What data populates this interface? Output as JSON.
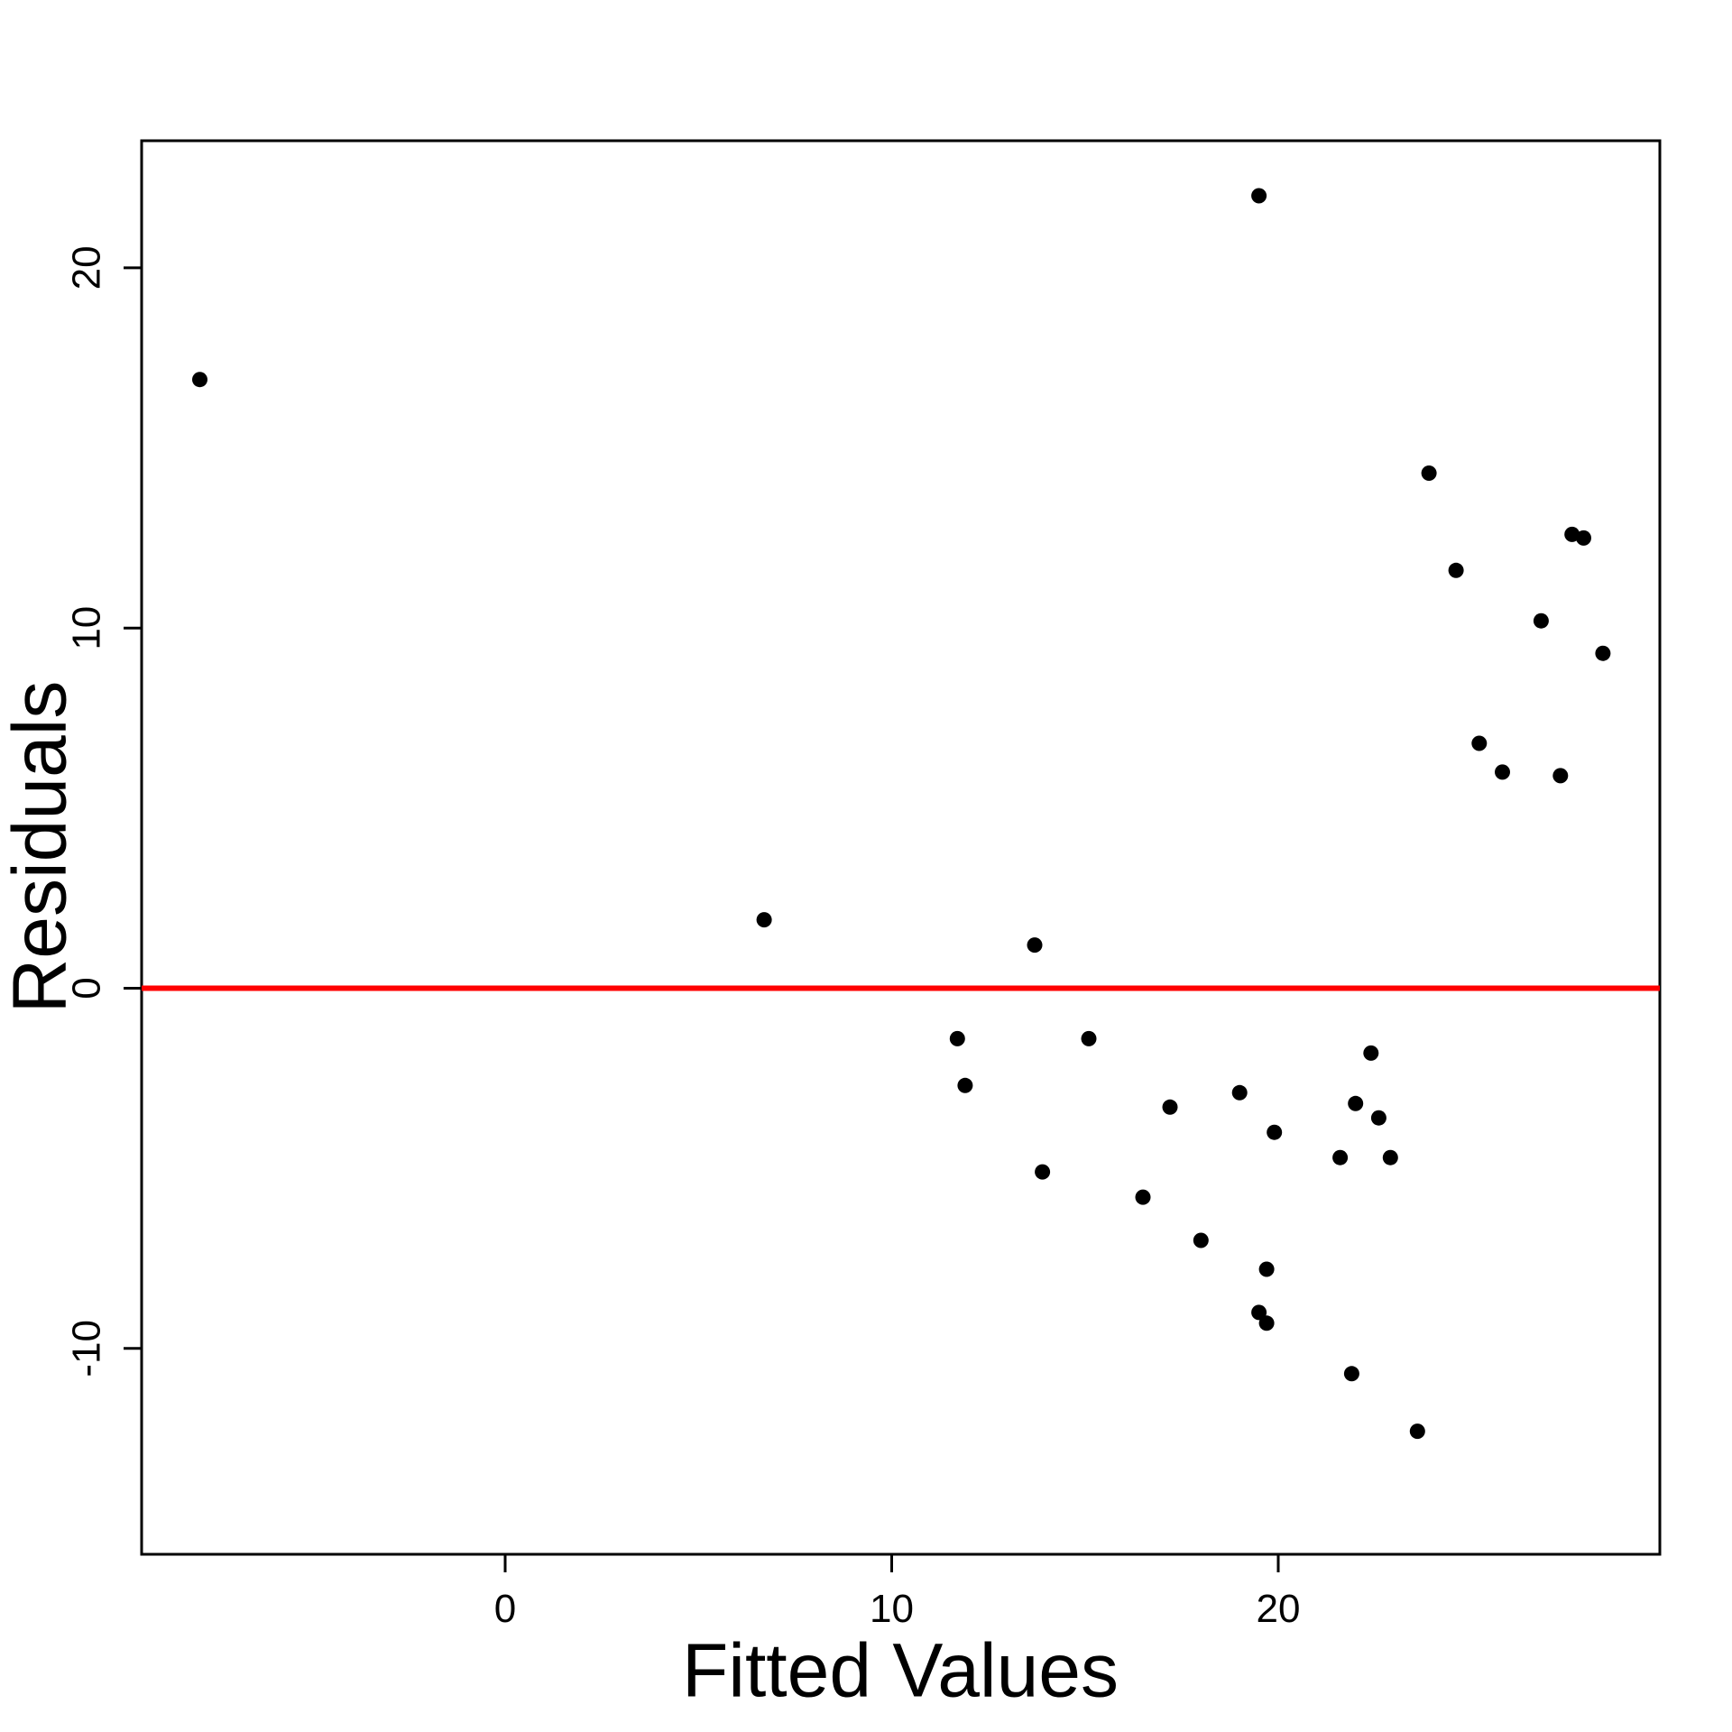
{
  "chart_data": {
    "type": "scatter",
    "title": "",
    "xlabel": "Fitted Values",
    "ylabel": "Residuals",
    "x_ticks": [
      0,
      10,
      20
    ],
    "y_ticks": [
      -10,
      0,
      10,
      20
    ],
    "xlim": [
      -9.4,
      29.9
    ],
    "ylim": [
      -15.7,
      23.5
    ],
    "grid": false,
    "legend": "none",
    "zero_line_y": 0,
    "colors": {
      "points": "#000000",
      "zero_line": "#FF0000",
      "axis": "#000000",
      "background": "#FFFFFF"
    },
    "points": [
      [
        -7.9,
        16.9
      ],
      [
        19.5,
        22.0
      ],
      [
        6.7,
        1.9
      ],
      [
        13.7,
        1.2
      ],
      [
        23.9,
        14.3
      ],
      [
        27.6,
        12.6
      ],
      [
        27.9,
        12.5
      ],
      [
        24.6,
        11.6
      ],
      [
        26.8,
        10.2
      ],
      [
        28.4,
        9.3
      ],
      [
        25.2,
        6.8
      ],
      [
        25.8,
        6.0
      ],
      [
        27.3,
        5.9
      ],
      [
        11.7,
        -1.4
      ],
      [
        15.1,
        -1.4
      ],
      [
        22.4,
        -1.8
      ],
      [
        11.9,
        -2.7
      ],
      [
        19.0,
        -2.9
      ],
      [
        17.2,
        -3.3
      ],
      [
        22.0,
        -3.2
      ],
      [
        22.6,
        -3.6
      ],
      [
        19.9,
        -4.0
      ],
      [
        21.6,
        -4.7
      ],
      [
        22.9,
        -4.7
      ],
      [
        13.9,
        -5.1
      ],
      [
        16.5,
        -5.8
      ],
      [
        18.0,
        -7.0
      ],
      [
        19.7,
        -7.8
      ],
      [
        19.5,
        -9.0
      ],
      [
        19.7,
        -9.3
      ],
      [
        21.9,
        -10.7
      ],
      [
        23.6,
        -12.3
      ]
    ]
  }
}
